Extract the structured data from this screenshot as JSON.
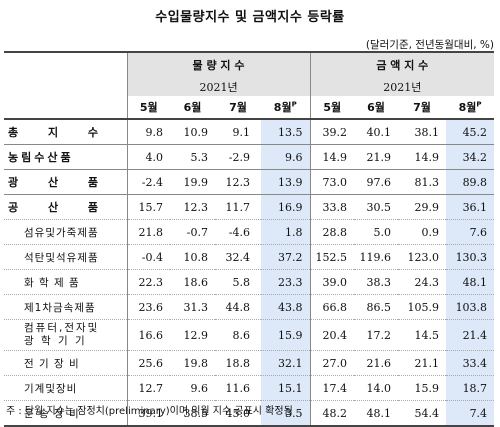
{
  "title": "수입물량지수 및 금액지수 등락률",
  "unit": "(달러기준, 전년동월대비, %)",
  "groups": [
    {
      "label": "물 량 지 수",
      "year": "2021년"
    },
    {
      "label": "금 액 지 수",
      "year": "2021년"
    }
  ],
  "months": [
    "5월",
    "6월",
    "7월",
    "8월",
    "5월",
    "6월",
    "7월",
    "8월"
  ],
  "month_superscript": "P",
  "rows": [
    {
      "label": "총 지 수",
      "volume": [
        "9.8",
        "10.9",
        "9.1",
        "13.5"
      ],
      "value": [
        "39.2",
        "40.1",
        "38.1",
        "45.2"
      ]
    },
    {
      "label": "농림수산품",
      "volume": [
        "4.0",
        "5.3",
        "-2.9",
        "9.6"
      ],
      "value": [
        "14.9",
        "21.9",
        "14.9",
        "34.2"
      ]
    },
    {
      "label": "광 산 품",
      "volume": [
        "-2.4",
        "19.9",
        "12.3",
        "13.9"
      ],
      "value": [
        "73.0",
        "97.6",
        "81.3",
        "89.8"
      ]
    },
    {
      "label": "공 산 품",
      "volume": [
        "15.7",
        "12.3",
        "11.7",
        "16.9"
      ],
      "value": [
        "33.8",
        "30.5",
        "29.9",
        "36.1"
      ]
    },
    {
      "label": "섬유및가죽제품",
      "volume": [
        "21.8",
        "-0.7",
        "-4.6",
        "1.8"
      ],
      "value": [
        "28.8",
        "5.0",
        "0.9",
        "7.6"
      ]
    },
    {
      "label": "석탄및석유제품",
      "volume": [
        "-0.4",
        "10.8",
        "32.4",
        "37.2"
      ],
      "value": [
        "152.5",
        "119.6",
        "123.0",
        "130.3"
      ]
    },
    {
      "label": "화 학 제 품",
      "volume": [
        "22.3",
        "18.6",
        "5.8",
        "23.3"
      ],
      "value": [
        "39.0",
        "38.3",
        "24.3",
        "48.1"
      ]
    },
    {
      "label": "제1차금속제품",
      "volume": [
        "23.6",
        "31.3",
        "44.8",
        "43.8"
      ],
      "value": [
        "66.8",
        "86.5",
        "105.9",
        "103.8"
      ]
    },
    {
      "label": "컴퓨터,전자및",
      "label2": "광 학 기 기",
      "volume": [
        "16.6",
        "12.9",
        "8.6",
        "15.9"
      ],
      "value": [
        "20.4",
        "17.2",
        "14.5",
        "21.4"
      ]
    },
    {
      "label": "전 기 장 비",
      "volume": [
        "25.6",
        "19.8",
        "18.8",
        "32.1"
      ],
      "value": [
        "27.0",
        "21.6",
        "21.1",
        "33.4"
      ]
    },
    {
      "label": "기계및장비",
      "volume": [
        "12.7",
        "9.6",
        "11.6",
        "15.1"
      ],
      "value": [
        "17.4",
        "14.0",
        "15.9",
        "18.7"
      ]
    },
    {
      "label": "운 송 장 비",
      "volume": [
        "39.1",
        "38.5",
        "45.0",
        "3.5"
      ],
      "value": [
        "48.2",
        "48.1",
        "54.4",
        "7.4"
      ]
    }
  ],
  "footnote": "주 : 당월 지수는 잠정치(preliminary)이며 익월 지수 공표시 확정됨"
}
